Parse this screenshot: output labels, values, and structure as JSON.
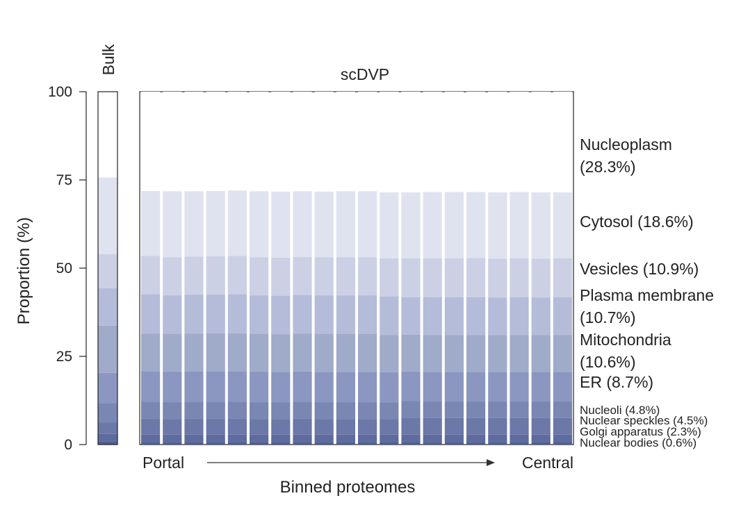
{
  "chart_data": {
    "type": "stacked_bar",
    "ylabel": "Proportion (%)",
    "xlabel": "Binned proteomes",
    "ylim": [
      0,
      100
    ],
    "yticks": [
      0,
      25,
      50,
      75,
      100
    ],
    "bulk_label": "Bulk",
    "panel_title": "scDVP",
    "x_start_label": "Portal",
    "x_end_label": "Central",
    "stack_order": [
      "Nuclear bodies",
      "Golgi apparatus",
      "Nuclear speckles",
      "Nucleoli",
      "ER",
      "Mitochondria",
      "Plasma membrane",
      "Vesicles",
      "Cytosol",
      "Nucleoplasm"
    ],
    "colors": [
      "#4f5d91",
      "#5d6b9e",
      "#6b78a8",
      "#7a87b3",
      "#8b97c0",
      "#a0aac9",
      "#b5bcd9",
      "#cbd0e5",
      "#dfe2ef",
      "#ffffff"
    ],
    "bulk": {
      "boundaries": [
        0.8,
        3.0,
        6.2,
        11.7,
        20.3,
        33.7,
        44.3,
        54.0,
        75.7,
        100
      ]
    },
    "bins": [
      {
        "bin": 1,
        "boundaries": [
          0.6,
          2.8,
          7.3,
          12.1,
          20.8,
          31.4,
          42.6,
          53.5,
          71.9,
          100
        ]
      },
      {
        "bin": 2,
        "boundaries": [
          0.6,
          2.8,
          7.2,
          12.0,
          20.7,
          31.3,
          42.3,
          53.1,
          71.8,
          100
        ]
      },
      {
        "bin": 3,
        "boundaries": [
          0.6,
          2.8,
          7.3,
          12.1,
          20.8,
          31.4,
          42.5,
          53.3,
          71.8,
          100
        ]
      },
      {
        "bin": 4,
        "boundaries": [
          0.6,
          2.8,
          7.3,
          12.1,
          20.8,
          31.5,
          42.5,
          53.4,
          71.9,
          100
        ]
      },
      {
        "bin": 5,
        "boundaries": [
          0.6,
          2.8,
          7.3,
          12.1,
          20.8,
          31.5,
          42.6,
          53.5,
          72.0,
          100
        ]
      },
      {
        "bin": 6,
        "boundaries": [
          0.6,
          2.8,
          7.2,
          12.0,
          20.7,
          31.3,
          42.3,
          53.1,
          71.8,
          100
        ]
      },
      {
        "bin": 7,
        "boundaries": [
          0.6,
          2.8,
          7.2,
          12.0,
          20.6,
          31.2,
          42.2,
          53.0,
          71.7,
          100
        ]
      },
      {
        "bin": 8,
        "boundaries": [
          0.6,
          2.8,
          7.3,
          12.1,
          20.7,
          31.4,
          42.4,
          53.2,
          71.8,
          100
        ]
      },
      {
        "bin": 9,
        "boundaries": [
          0.6,
          2.8,
          7.2,
          12.0,
          20.6,
          31.3,
          42.3,
          53.1,
          71.7,
          100
        ]
      },
      {
        "bin": 10,
        "boundaries": [
          0.6,
          2.8,
          7.2,
          12.0,
          20.6,
          31.3,
          42.3,
          53.1,
          71.8,
          100
        ]
      },
      {
        "bin": 11,
        "boundaries": [
          0.6,
          2.8,
          7.2,
          12.0,
          20.6,
          31.3,
          42.3,
          53.1,
          71.8,
          100
        ]
      },
      {
        "bin": 12,
        "boundaries": [
          0.6,
          2.8,
          7.2,
          11.9,
          20.5,
          31.0,
          42.0,
          52.8,
          71.5,
          100
        ]
      },
      {
        "bin": 13,
        "boundaries": [
          0.6,
          2.8,
          7.6,
          12.3,
          20.7,
          31.1,
          41.8,
          52.8,
          71.5,
          100
        ]
      },
      {
        "bin": 14,
        "boundaries": [
          0.6,
          2.8,
          7.5,
          12.2,
          20.6,
          31.0,
          41.8,
          52.8,
          71.6,
          100
        ]
      },
      {
        "bin": 15,
        "boundaries": [
          0.6,
          2.8,
          7.5,
          12.2,
          20.6,
          31.0,
          41.8,
          52.8,
          71.6,
          100
        ]
      },
      {
        "bin": 16,
        "boundaries": [
          0.6,
          2.8,
          7.5,
          12.2,
          20.6,
          31.0,
          41.8,
          52.9,
          71.6,
          100
        ]
      },
      {
        "bin": 17,
        "boundaries": [
          0.6,
          2.8,
          7.5,
          12.2,
          20.6,
          31.0,
          41.7,
          52.7,
          71.5,
          100
        ]
      },
      {
        "bin": 18,
        "boundaries": [
          0.6,
          2.8,
          7.5,
          12.2,
          20.6,
          31.0,
          41.8,
          52.8,
          71.6,
          100
        ]
      },
      {
        "bin": 19,
        "boundaries": [
          0.6,
          2.8,
          7.5,
          12.2,
          20.6,
          31.0,
          41.7,
          52.7,
          71.5,
          100
        ]
      },
      {
        "bin": 20,
        "boundaries": [
          0.6,
          2.8,
          7.5,
          12.2,
          20.6,
          31.0,
          41.8,
          52.8,
          71.5,
          100
        ]
      }
    ],
    "compartment_labels": [
      {
        "line1": "Nucleoplasm",
        "line2": "(28.3%)",
        "size": "large"
      },
      {
        "line1": "Cytosol (18.6%)",
        "line2": "",
        "size": "large"
      },
      {
        "line1": "Vesicles (10.9%)",
        "line2": "",
        "size": "large"
      },
      {
        "line1": "Plasma membrane",
        "line2": "(10.7%)",
        "size": "large"
      },
      {
        "line1": "Mitochondria",
        "line2": "(10.6%)",
        "size": "large"
      },
      {
        "line1": "ER (8.7%)",
        "line2": "",
        "size": "large"
      },
      {
        "line1": "Nucleoli (4.8%)",
        "line2": "",
        "size": "small"
      },
      {
        "line1": "Nuclear speckles (4.5%)",
        "line2": "",
        "size": "small"
      },
      {
        "line1": "Golgi apparatus (2.3%)",
        "line2": "",
        "size": "small"
      },
      {
        "line1": "Nuclear bodies (0.6%)",
        "line2": "",
        "size": "small"
      }
    ]
  }
}
